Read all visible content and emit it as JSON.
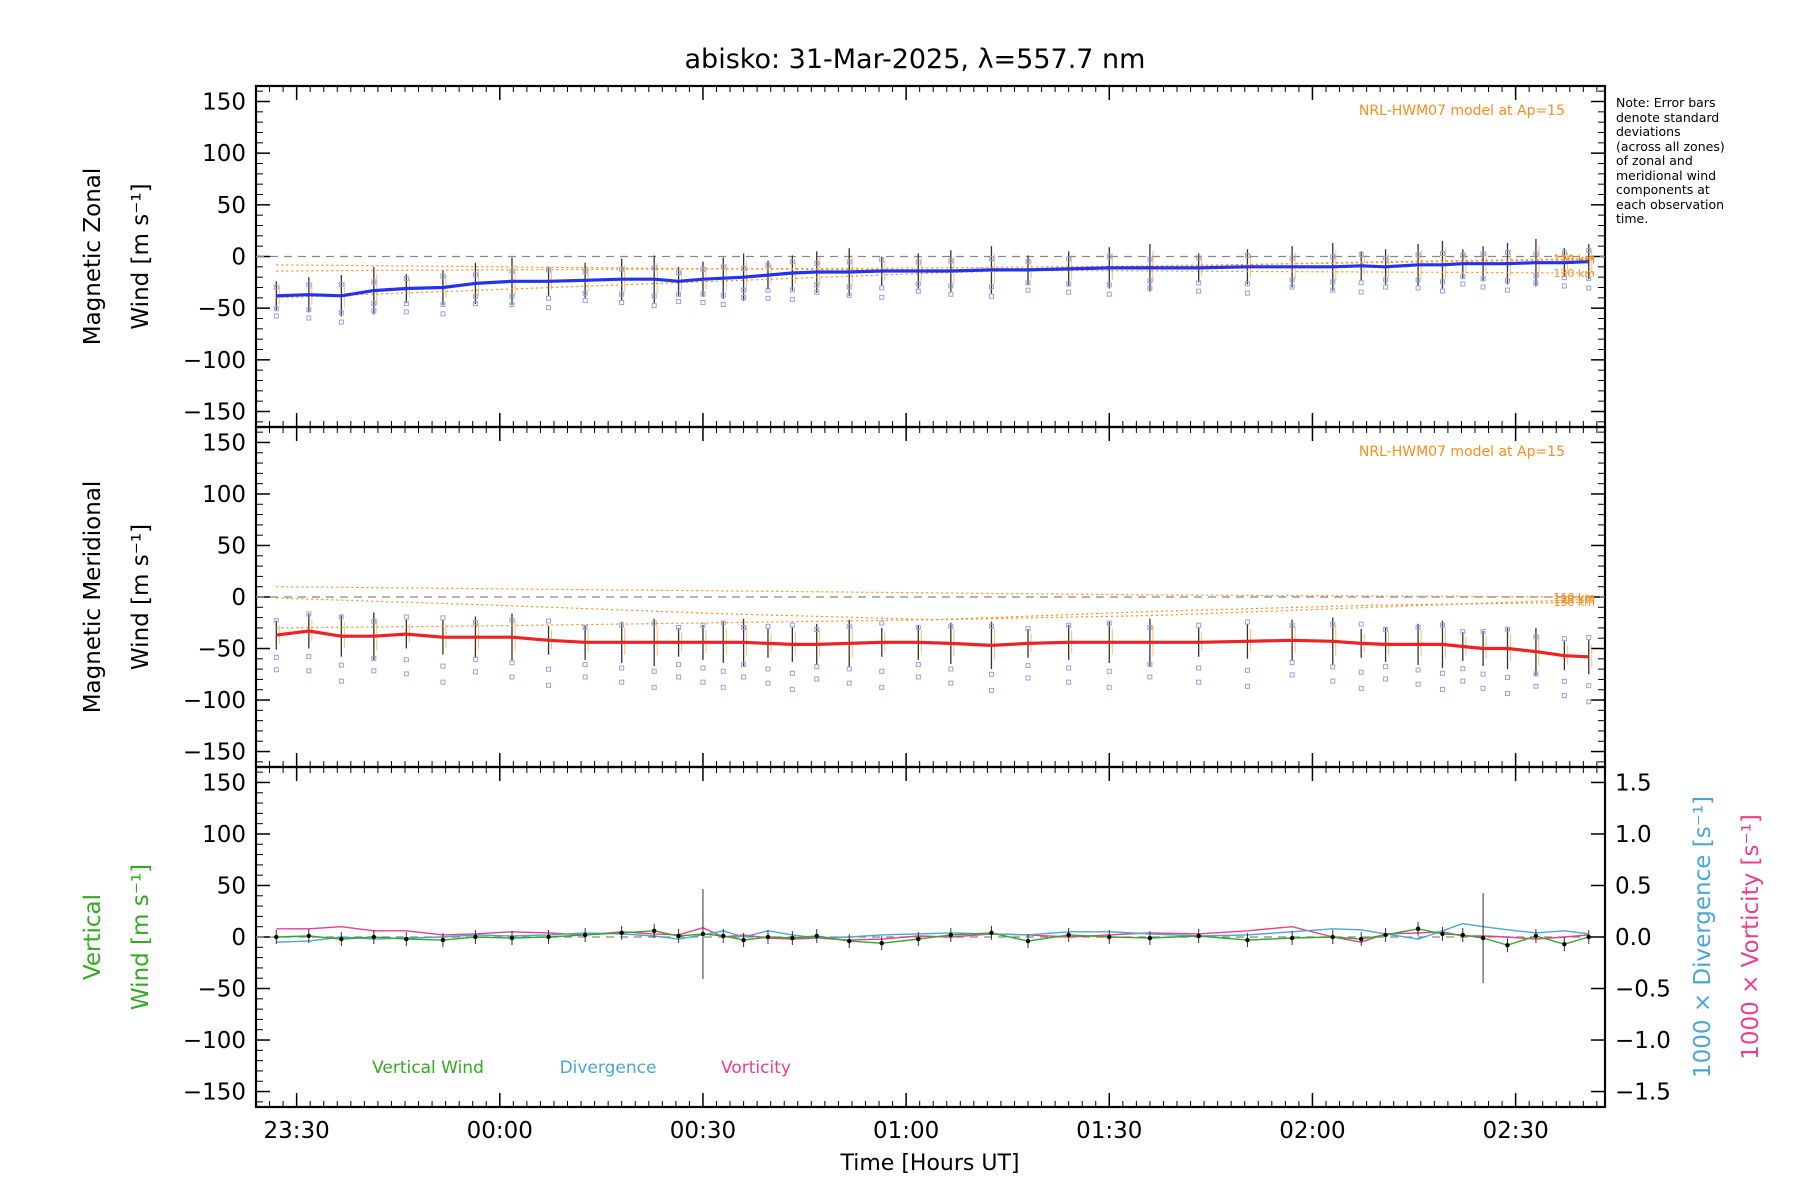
{
  "title": "abisko: 31-Mar-2025, λ=557.7 nm",
  "note": "Note: Error bars\ndenote standard\ndeviations\n(across all zones)\nof zonal and\nmeridional wind\ncomponents at\neach observation\ntime.",
  "model_label": "NRL-HWM07 model at Ap=15",
  "model_altitudes": [
    "110 km",
    "120 km",
    "130 km"
  ],
  "colors": {
    "zonal": "#2233ee",
    "meridional": "#ee2222",
    "model": "#ff8c1a",
    "vertical": "#33aa22",
    "divergence": "#4aa6d6",
    "vorticity": "#ee3d8c",
    "zone_points": "#9aa0e0",
    "zero_line": "#888888"
  },
  "xaxis": {
    "label": "Time [Hours UT]",
    "ticks": [
      {
        "h": 23.5,
        "label": "23:30"
      },
      {
        "h": 24.0,
        "label": "00:00"
      },
      {
        "h": 24.5,
        "label": "00:30"
      },
      {
        "h": 25.0,
        "label": "01:00"
      },
      {
        "h": 25.5,
        "label": "01:30"
      },
      {
        "h": 26.0,
        "label": "02:00"
      },
      {
        "h": 26.5,
        "label": "02:30"
      }
    ]
  },
  "chart_data": [
    {
      "type": "line",
      "title": "abisko: 31-Mar-2025, λ=557.7 nm",
      "ylabel_line1": "Magnetic Zonal",
      "ylabel_line2": "Wind [m s⁻¹]",
      "ylim": [
        -165,
        165
      ],
      "yticks": [
        150,
        100,
        50,
        0,
        -50,
        -100,
        -150
      ],
      "x_hours": [
        23.45,
        23.53,
        23.61,
        23.69,
        23.77,
        23.86,
        23.94,
        24.03,
        24.12,
        24.21,
        24.3,
        24.38,
        24.44,
        24.5,
        24.55,
        24.6,
        24.66,
        24.72,
        24.78,
        24.86,
        24.94,
        25.03,
        25.11,
        25.21,
        25.3,
        25.4,
        25.5,
        25.6,
        25.72,
        25.84,
        25.95,
        26.05,
        26.12,
        26.18,
        26.26,
        26.32,
        26.37,
        26.42,
        26.48,
        26.55,
        26.62,
        26.68
      ],
      "series": [
        {
          "name": "Magnetic Zonal Wind",
          "values": [
            -38,
            -37,
            -38,
            -33,
            -31,
            -30,
            -26,
            -24,
            -24,
            -23,
            -22,
            -22,
            -24,
            -22,
            -21,
            -20,
            -18,
            -16,
            -15,
            -15,
            -14,
            -14,
            -14,
            -13,
            -13,
            -12,
            -11,
            -11,
            -11,
            -10,
            -10,
            -10,
            -9,
            -10,
            -8,
            -8,
            -7,
            -7,
            -7,
            -6,
            -6,
            -5
          ]
        },
        {
          "name": "110 km",
          "values": [
            -40,
            -32,
            -24,
            -16,
            -10,
            -5,
            -2
          ]
        },
        {
          "name": "120 km",
          "values": [
            -14,
            -13,
            -12,
            -11,
            -9,
            -6,
            -3
          ]
        },
        {
          "name": "130 km",
          "values": [
            -8,
            -10,
            -12,
            -13,
            -14,
            -15,
            -16
          ]
        }
      ],
      "model_x_hours": [
        23.45,
        23.99,
        24.53,
        25.07,
        25.61,
        26.15,
        26.69
      ]
    },
    {
      "type": "line",
      "ylabel_line1": "Magnetic Meridional",
      "ylabel_line2": "Wind [m s⁻¹]",
      "ylim": [
        -165,
        165
      ],
      "yticks": [
        150,
        100,
        50,
        0,
        -50,
        -100,
        -150
      ],
      "x_hours": [
        23.45,
        23.53,
        23.61,
        23.69,
        23.77,
        23.86,
        23.94,
        24.03,
        24.12,
        24.21,
        24.3,
        24.38,
        24.44,
        24.5,
        24.55,
        24.6,
        24.66,
        24.72,
        24.78,
        24.86,
        24.94,
        25.03,
        25.11,
        25.21,
        25.3,
        25.4,
        25.5,
        25.6,
        25.72,
        25.84,
        25.95,
        26.05,
        26.12,
        26.18,
        26.26,
        26.32,
        26.37,
        26.42,
        26.48,
        26.55,
        26.62,
        26.68
      ],
      "series": [
        {
          "name": "Magnetic Meridional Wind",
          "values": [
            -37,
            -33,
            -38,
            -38,
            -36,
            -39,
            -39,
            -39,
            -42,
            -44,
            -44,
            -44,
            -44,
            -44,
            -44,
            -44,
            -45,
            -46,
            -46,
            -45,
            -44,
            -44,
            -45,
            -47,
            -45,
            -44,
            -44,
            -44,
            -44,
            -43,
            -42,
            -43,
            -45,
            -46,
            -46,
            -46,
            -48,
            -50,
            -50,
            -53,
            -57,
            -58
          ]
        },
        {
          "name": "110 km",
          "values": [
            10,
            8,
            6,
            4,
            2,
            1,
            0
          ]
        },
        {
          "name": "120 km",
          "values": [
            -1,
            -8,
            -16,
            -22,
            -18,
            -10,
            -2
          ]
        },
        {
          "name": "130 km",
          "values": [
            -30,
            -28,
            -25,
            -22,
            -14,
            -8,
            -5
          ]
        }
      ],
      "model_x_hours": [
        23.45,
        23.99,
        24.53,
        25.07,
        25.61,
        26.15,
        26.69
      ]
    },
    {
      "type": "line",
      "ylabel_line1": "Vertical",
      "ylabel_line2": "Wind [m s⁻¹]",
      "y2label": "1000 × Divergence [s⁻¹]",
      "y3label": "1000 × Vorticity [s⁻¹]",
      "ylim": [
        -165,
        165
      ],
      "yticks": [
        150,
        100,
        50,
        0,
        -50,
        -100,
        -150
      ],
      "y2lim": [
        -1.65,
        1.65
      ],
      "y2ticks": [
        "1.5",
        "1.0",
        "0.5",
        "0.0",
        "-0.5",
        "-1.0",
        "-1.5"
      ],
      "legend": [
        "Vertical Wind",
        "Divergence",
        "Vorticity"
      ],
      "x_hours": [
        23.45,
        23.53,
        23.61,
        23.69,
        23.77,
        23.86,
        23.94,
        24.03,
        24.12,
        24.21,
        24.3,
        24.38,
        24.44,
        24.5,
        24.55,
        24.6,
        24.66,
        24.72,
        24.78,
        24.86,
        24.94,
        25.03,
        25.11,
        25.21,
        25.3,
        25.4,
        25.5,
        25.6,
        25.72,
        25.84,
        25.95,
        26.05,
        26.12,
        26.18,
        26.26,
        26.32,
        26.37,
        26.42,
        26.48,
        26.55,
        26.62,
        26.68
      ],
      "series": [
        {
          "name": "Vertical Wind",
          "values": [
            0,
            1,
            -2,
            0,
            -2,
            -3,
            0,
            -1,
            0,
            2,
            4,
            6,
            1,
            3,
            1,
            -3,
            0,
            -1,
            1,
            -4,
            -6,
            -2,
            2,
            4,
            -4,
            2,
            0,
            -1,
            1,
            -3,
            -1,
            0,
            -2,
            2,
            8,
            3,
            2,
            -1,
            -8,
            1,
            -7,
            0
          ]
        },
        {
          "name": "Divergence",
          "values": [
            -0.05,
            -0.04,
            0.0,
            -0.02,
            -0.01,
            0.0,
            0.02,
            0.01,
            0.02,
            0.04,
            0.03,
            0.01,
            -0.02,
            0.02,
            0.06,
            0.0,
            0.06,
            0.02,
            -0.01,
            0.0,
            0.02,
            0.03,
            0.04,
            0.03,
            0.02,
            0.05,
            0.05,
            0.03,
            0.01,
            0.02,
            0.05,
            0.08,
            0.07,
            0.03,
            -0.02,
            0.06,
            0.13,
            0.1,
            0.07,
            0.04,
            0.06,
            0.03
          ]
        },
        {
          "name": "Vorticity",
          "values": [
            0.08,
            0.08,
            0.1,
            0.06,
            0.06,
            0.02,
            0.03,
            0.05,
            0.04,
            0.02,
            0.05,
            0.03,
            0.02,
            0.09,
            0.0,
            0.02,
            -0.01,
            -0.02,
            -0.01,
            -0.03,
            -0.02,
            0.01,
            0.0,
            0.03,
            0.02,
            0.0,
            0.02,
            0.04,
            0.03,
            0.06,
            0.1,
            0.0,
            -0.05,
            0.03,
            0.04,
            0.05,
            0.01,
            0.01,
            0.0,
            -0.02,
            0.0,
            0.02
          ]
        }
      ]
    }
  ]
}
